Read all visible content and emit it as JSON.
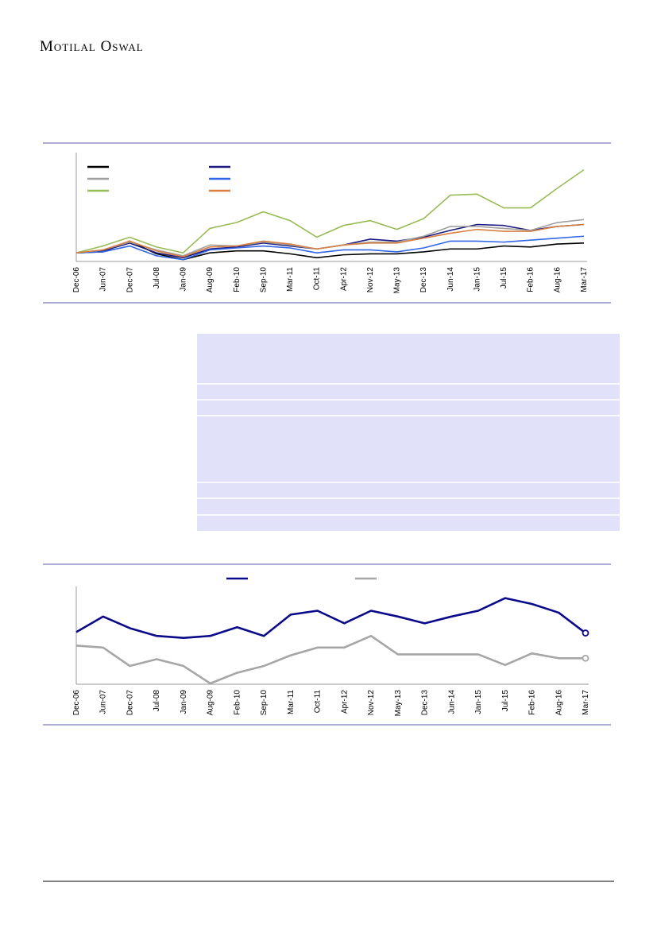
{
  "header": {
    "brand": "Motilal Oswal"
  },
  "chart_data": [
    {
      "type": "line",
      "categories": [
        "Dec-06",
        "Jun-07",
        "Dec-07",
        "Jul-08",
        "Jan-09",
        "Aug-09",
        "Feb-10",
        "Sep-10",
        "Mar-11",
        "Oct-11",
        "Apr-12",
        "Nov-12",
        "May-13",
        "Dec-13",
        "Jun-14",
        "Jan-15",
        "Jul-15",
        "Feb-16",
        "Aug-16",
        "Mar-17"
      ],
      "ylim": [
        0,
        100
      ],
      "series": [
        {
          "color": "#000000",
          "values": [
            8,
            9,
            20,
            7,
            1,
            8,
            10,
            10,
            7,
            3,
            6,
            7,
            7,
            9,
            12,
            12,
            15,
            14,
            17,
            18
          ]
        },
        {
          "color": "#1a1a80",
          "values": [
            8,
            10,
            18,
            8,
            3,
            12,
            14,
            18,
            15,
            12,
            16,
            22,
            20,
            24,
            31,
            37,
            36,
            31,
            35,
            37
          ]
        },
        {
          "color": "#a0a0a0",
          "values": [
            8,
            11,
            19,
            11,
            5,
            16,
            15,
            19,
            16,
            12,
            16,
            19,
            19,
            25,
            35,
            35,
            33,
            31,
            39,
            42
          ]
        },
        {
          "color": "#3366e6",
          "values": [
            8,
            9,
            15,
            5,
            1,
            11,
            13,
            15,
            13,
            8,
            11,
            11,
            9,
            13,
            20,
            20,
            19,
            21,
            23,
            25
          ]
        },
        {
          "color": "#99bb55",
          "values": [
            8,
            15,
            24,
            14,
            8,
            33,
            39,
            50,
            41,
            24,
            36,
            41,
            32,
            43,
            67,
            68,
            54,
            54,
            74,
            93
          ]
        },
        {
          "color": "#d98040",
          "values": [
            8,
            11,
            20,
            10,
            4,
            14,
            15,
            20,
            17,
            12,
            16,
            18,
            18,
            23,
            28,
            32,
            30,
            30,
            35,
            37
          ]
        }
      ]
    },
    {
      "type": "line",
      "categories": [
        "Dec-06",
        "Jun-07",
        "Dec-07",
        "Jul-08",
        "Jan-09",
        "Aug-09",
        "Feb-10",
        "Sep-10",
        "Mar-11",
        "Oct-11",
        "Apr-12",
        "Nov-12",
        "May-13",
        "Dec-13",
        "Jun-14",
        "Jan-15",
        "Jul-15",
        "Feb-16",
        "Aug-16",
        "Mar-17"
      ],
      "ylim": [
        0,
        100
      ],
      "series": [
        {
          "color": "#0a0a8a",
          "values": [
            53,
            69,
            57,
            49,
            47,
            49,
            58,
            49,
            71,
            75,
            62,
            75,
            69,
            62,
            69,
            75,
            88,
            82,
            73,
            52
          ]
        },
        {
          "color": "#a6a6a6",
          "values": [
            39,
            37,
            18,
            25,
            18,
            0,
            11,
            18,
            29,
            37,
            37,
            49,
            30,
            30,
            30,
            30,
            19,
            31,
            26,
            26
          ]
        }
      ]
    }
  ]
}
